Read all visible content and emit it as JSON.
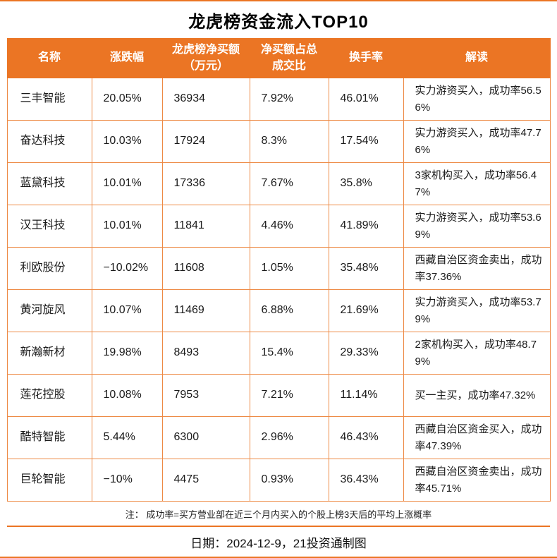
{
  "page": {
    "title": "龙虎榜资金流入TOP10",
    "note": "注： 成功率=买方营业部在近三个月内买入的个股上榜3天后的平均上涨概率",
    "footer": "日期：2024-12-9，21投资通制图"
  },
  "colors": {
    "accent": "#EB7524",
    "border": "#ED8A45",
    "header_text": "#FFFFFF",
    "body_text": "#1A1A1A"
  },
  "chart_data": {
    "type": "table",
    "title": "龙虎榜资金流入TOP10",
    "legend_position": "none",
    "grid": true,
    "headers": [
      "名称",
      "涨跌幅",
      "龙虎榜净买额（万元）",
      "净买额占总成交比",
      "换手率",
      "解读"
    ],
    "rows": [
      [
        "三丰智能",
        "20.05%",
        "36934",
        "7.92%",
        "46.01%",
        "实力游资买入，成功率56.56%"
      ],
      [
        "奋达科技",
        "10.03%",
        "17924",
        "8.3%",
        "17.54%",
        "实力游资买入，成功率47.76%"
      ],
      [
        "蓝黛科技",
        "10.01%",
        "17336",
        "7.67%",
        "35.8%",
        "3家机构买入，成功率56.47%"
      ],
      [
        "汉王科技",
        "10.01%",
        "11841",
        "4.46%",
        "41.89%",
        "实力游资买入，成功率53.69%"
      ],
      [
        "利欧股份",
        "−10.02%",
        "11608",
        "1.05%",
        "35.48%",
        "西藏自治区资金卖出，成功率37.36%"
      ],
      [
        "黄河旋风",
        "10.07%",
        "11469",
        "6.88%",
        "21.69%",
        "实力游资买入，成功率53.79%"
      ],
      [
        "新瀚新材",
        "19.98%",
        "8493",
        "15.4%",
        "29.33%",
        "2家机构买入，成功率48.79%"
      ],
      [
        "莲花控股",
        "10.08%",
        "7953",
        "7.21%",
        "11.14%",
        "买一主买，成功率47.32%"
      ],
      [
        "酷特智能",
        "5.44%",
        "6300",
        "2.96%",
        "46.43%",
        "西藏自治区资金买入，成功率47.39%"
      ],
      [
        "巨轮智能",
        "−10%",
        "4475",
        "0.93%",
        "36.43%",
        "西藏自治区资金卖出，成功率45.71%"
      ]
    ],
    "note": "注： 成功率=买方营业部在近三个月内买入的个股上榜3天后的平均上涨概率",
    "footer": "日期：2024-12-9，21投资通制图"
  }
}
